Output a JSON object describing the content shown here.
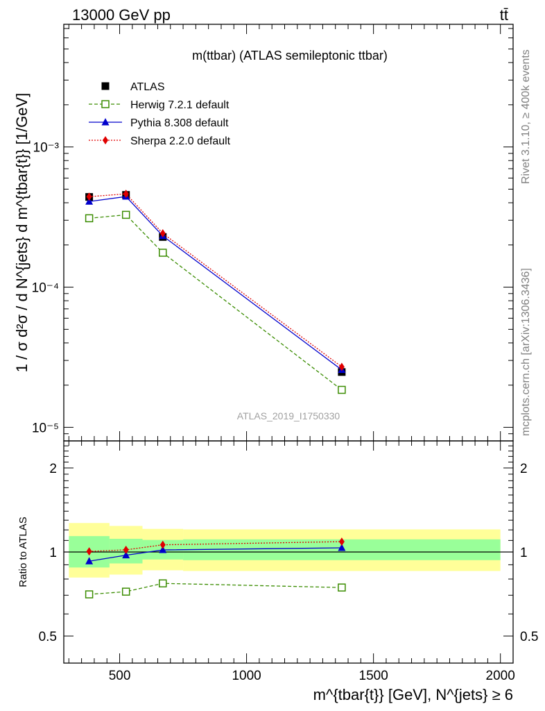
{
  "header": {
    "energy_label": "13000 GeV pp",
    "process_label": "tt̄"
  },
  "side_labels": {
    "rivet": "Rivet 3.1.10, ≥ 400k events",
    "mcplots": "mcplots.cern.ch [arXiv:1306.3436]"
  },
  "chart_data": [
    {
      "type": "line",
      "title": "m(ttbar) (ATLAS semileptonic ttbar)",
      "watermark": "ATLAS_2019_I1750330",
      "ylabel": "1 / σ d²σ / d N^{jets} d m^{tbar{t}} [1/GeV]",
      "yscale": "log",
      "ylim": [
        8e-06,
        0.0075
      ],
      "xlim": [
        280,
        2050
      ],
      "ytick_labels": [
        "10⁻⁵",
        "10⁻⁴",
        "10⁻³"
      ],
      "legend_position": "top-left",
      "x": [
        380,
        525,
        670,
        1375
      ],
      "series": [
        {
          "name": "ATLAS",
          "values": [
            0.00044,
            0.000455,
            0.000228,
            2.48e-05
          ],
          "color": "#000000",
          "marker": "square-filled",
          "line": "none"
        },
        {
          "name": "Herwig 7.2.1 default",
          "values": [
            0.00031,
            0.000328,
            0.000176,
            1.85e-05
          ],
          "color": "#3a8c00",
          "marker": "square-open",
          "line": "dashed"
        },
        {
          "name": "Pythia 8.308 default",
          "values": [
            0.000408,
            0.000443,
            0.000232,
            2.57e-05
          ],
          "color": "#0000cc",
          "marker": "triangle-filled",
          "line": "solid"
        },
        {
          "name": "Sherpa 2.2.0 default",
          "values": [
            0.000442,
            0.000463,
            0.000242,
            2.7e-05
          ],
          "color": "#e00000",
          "marker": "diamond-filled",
          "line": "dotted"
        }
      ]
    },
    {
      "type": "line",
      "ylabel": "Ratio to ATLAS",
      "xlabel": "m^{tbar{t}} [GeV], N^{jets} ≥ 6",
      "yscale": "log",
      "ylim": [
        0.4,
        2.5
      ],
      "xlim": [
        280,
        2050
      ],
      "xticks": [
        500,
        1000,
        1500,
        2000
      ],
      "yticks": [
        0.5,
        1,
        2
      ],
      "x": [
        380,
        525,
        670,
        1375
      ],
      "bin_edges": [
        300,
        460,
        590,
        750,
        2000
      ],
      "uncertainty_bands": [
        {
          "name": "stat",
          "color": "#99ff99",
          "low": [
            0.88,
            0.91,
            0.94,
            0.935
          ],
          "high": [
            1.14,
            1.115,
            1.105,
            1.11
          ]
        },
        {
          "name": "total",
          "color": "#ffff99",
          "low": [
            0.81,
            0.83,
            0.86,
            0.855
          ],
          "high": [
            1.27,
            1.24,
            1.21,
            1.205
          ]
        }
      ],
      "series": [
        {
          "name": "Herwig 7.2.1 default",
          "values": [
            0.705,
            0.721,
            0.772,
            0.746
          ],
          "color": "#3a8c00",
          "marker": "square-open",
          "line": "dashed"
        },
        {
          "name": "Pythia 8.308 default",
          "values": [
            0.927,
            0.974,
            1.017,
            1.035
          ],
          "color": "#0000cc",
          "marker": "triangle-filled",
          "line": "solid"
        },
        {
          "name": "Sherpa 2.2.0 default",
          "values": [
            1.005,
            1.018,
            1.061,
            1.089
          ],
          "color": "#e00000",
          "marker": "diamond-filled",
          "line": "dotted"
        }
      ]
    }
  ]
}
